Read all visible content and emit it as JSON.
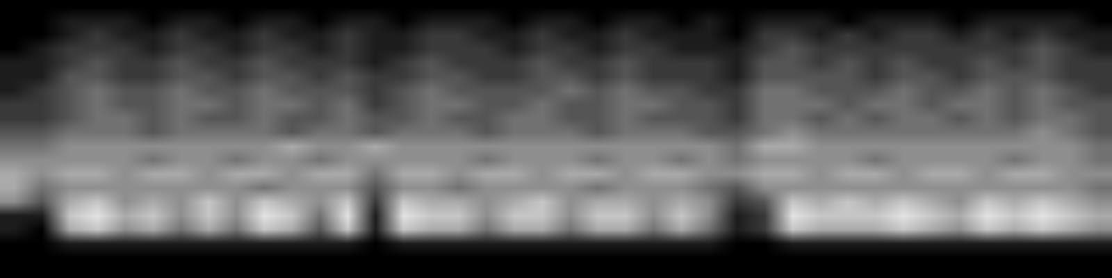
{
  "chart_data": {
    "type": "heatmap",
    "tick_labels": false,
    "grid": false,
    "zlim": [
      0,
      9
    ],
    "cells": [
      [
        0,
        0,
        0,
        0,
        0,
        0,
        0,
        0,
        0,
        0,
        0,
        0,
        0,
        0,
        0,
        0,
        0,
        0,
        0,
        0,
        0,
        0,
        0,
        0,
        0,
        0,
        0,
        0,
        0,
        0,
        0,
        0,
        0,
        0,
        0,
        0,
        0,
        0,
        0,
        0
      ],
      [
        0,
        0,
        1,
        1,
        1,
        0,
        1,
        1,
        0,
        1,
        1,
        0,
        1,
        1,
        0,
        1,
        1,
        1,
        0,
        1,
        1,
        0,
        1,
        1,
        0,
        1,
        0,
        1,
        1,
        1,
        0,
        1,
        1,
        1,
        0,
        1,
        1,
        1,
        1,
        0
      ],
      [
        0,
        0,
        1,
        2,
        1,
        1,
        2,
        1,
        1,
        2,
        1,
        1,
        2,
        1,
        1,
        2,
        2,
        1,
        1,
        2,
        1,
        1,
        2,
        1,
        1,
        1,
        0,
        2,
        2,
        1,
        2,
        1,
        2,
        2,
        1,
        2,
        1,
        2,
        1,
        1
      ],
      [
        0,
        1,
        2,
        2,
        2,
        1,
        2,
        2,
        1,
        2,
        2,
        1,
        2,
        1,
        1,
        2,
        2,
        2,
        1,
        2,
        2,
        1,
        2,
        2,
        1,
        1,
        1,
        2,
        3,
        2,
        2,
        2,
        2,
        2,
        2,
        2,
        2,
        3,
        2,
        1
      ],
      [
        1,
        1,
        2,
        3,
        2,
        2,
        3,
        2,
        2,
        3,
        2,
        2,
        2,
        1,
        2,
        3,
        2,
        2,
        2,
        3,
        2,
        2,
        3,
        2,
        2,
        2,
        1,
        3,
        3,
        2,
        3,
        2,
        3,
        2,
        2,
        3,
        2,
        3,
        2,
        2
      ],
      [
        1,
        1,
        3,
        3,
        2,
        2,
        3,
        3,
        2,
        3,
        3,
        2,
        3,
        2,
        2,
        3,
        3,
        2,
        2,
        3,
        3,
        2,
        3,
        2,
        2,
        2,
        1,
        3,
        3,
        3,
        3,
        2,
        3,
        3,
        2,
        3,
        3,
        3,
        2,
        2
      ],
      [
        1,
        2,
        3,
        4,
        3,
        3,
        4,
        3,
        3,
        4,
        3,
        3,
        3,
        2,
        3,
        4,
        3,
        3,
        3,
        3,
        4,
        3,
        4,
        3,
        3,
        2,
        2,
        4,
        4,
        3,
        3,
        3,
        4,
        3,
        3,
        4,
        3,
        4,
        3,
        2
      ],
      [
        2,
        2,
        3,
        4,
        3,
        3,
        4,
        4,
        3,
        4,
        4,
        3,
        4,
        2,
        3,
        4,
        4,
        3,
        3,
        4,
        3,
        3,
        4,
        4,
        3,
        3,
        2,
        4,
        4,
        4,
        3,
        4,
        4,
        3,
        4,
        4,
        3,
        4,
        3,
        3
      ],
      [
        2,
        2,
        3,
        4,
        4,
        3,
        4,
        3,
        3,
        4,
        3,
        3,
        4,
        3,
        3,
        4,
        3,
        3,
        4,
        4,
        3,
        3,
        4,
        3,
        3,
        3,
        2,
        4,
        4,
        3,
        4,
        3,
        4,
        4,
        3,
        4,
        3,
        4,
        4,
        3
      ],
      [
        3,
        3,
        4,
        4,
        4,
        3,
        4,
        4,
        4,
        4,
        3,
        4,
        4,
        3,
        4,
        4,
        4,
        3,
        4,
        4,
        4,
        3,
        4,
        4,
        4,
        3,
        3,
        4,
        5,
        4,
        4,
        4,
        4,
        4,
        4,
        4,
        4,
        5,
        4,
        3
      ],
      [
        4,
        4,
        5,
        5,
        5,
        5,
        5,
        5,
        5,
        5,
        6,
        5,
        5,
        6,
        5,
        5,
        5,
        5,
        5,
        5,
        5,
        5,
        5,
        5,
        5,
        5,
        4,
        6,
        6,
        5,
        5,
        5,
        5,
        5,
        5,
        5,
        5,
        5,
        5,
        4
      ],
      [
        5,
        5,
        5,
        5,
        5,
        4,
        5,
        5,
        4,
        5,
        5,
        4,
        5,
        5,
        5,
        5,
        5,
        4,
        5,
        5,
        5,
        4,
        5,
        5,
        4,
        5,
        4,
        5,
        5,
        5,
        5,
        4,
        5,
        5,
        5,
        5,
        4,
        5,
        5,
        4
      ],
      [
        6,
        5,
        6,
        6,
        5,
        6,
        6,
        5,
        6,
        6,
        5,
        6,
        6,
        4,
        6,
        6,
        5,
        6,
        6,
        5,
        6,
        6,
        5,
        6,
        6,
        5,
        5,
        6,
        6,
        5,
        6,
        6,
        5,
        6,
        6,
        5,
        6,
        6,
        5,
        5
      ],
      [
        6,
        4,
        5,
        5,
        5,
        5,
        5,
        5,
        5,
        4,
        5,
        5,
        5,
        3,
        5,
        5,
        4,
        5,
        5,
        5,
        5,
        4,
        5,
        5,
        5,
        4,
        3,
        5,
        5,
        5,
        5,
        5,
        5,
        5,
        5,
        5,
        5,
        5,
        5,
        4
      ],
      [
        5,
        3,
        6,
        7,
        5,
        6,
        5,
        7,
        5,
        7,
        6,
        5,
        7,
        2,
        7,
        6,
        6,
        5,
        6,
        7,
        5,
        6,
        6,
        5,
        6,
        5,
        2,
        3,
        7,
        6,
        7,
        6,
        7,
        6,
        5,
        7,
        6,
        7,
        6,
        5
      ],
      [
        1,
        1,
        7,
        8,
        6,
        7,
        5,
        7,
        5,
        8,
        7,
        4,
        8,
        1,
        8,
        7,
        7,
        5,
        7,
        7,
        5,
        7,
        7,
        5,
        7,
        5,
        1,
        2,
        8,
        7,
        7,
        7,
        8,
        7,
        6,
        8,
        7,
        8,
        7,
        6
      ],
      [
        1,
        0,
        6,
        7,
        5,
        6,
        4,
        6,
        4,
        7,
        6,
        3,
        7,
        1,
        7,
        6,
        6,
        4,
        6,
        6,
        4,
        6,
        6,
        4,
        6,
        4,
        1,
        2,
        7,
        6,
        6,
        6,
        7,
        6,
        5,
        7,
        6,
        7,
        6,
        5
      ],
      [
        0,
        0,
        1,
        1,
        1,
        1,
        1,
        1,
        1,
        1,
        1,
        1,
        1,
        0,
        1,
        1,
        1,
        1,
        1,
        1,
        1,
        1,
        1,
        1,
        1,
        1,
        0,
        0,
        1,
        1,
        1,
        1,
        1,
        1,
        1,
        1,
        1,
        1,
        1,
        1
      ],
      [
        0,
        0,
        0,
        0,
        0,
        0,
        0,
        0,
        0,
        0,
        0,
        0,
        0,
        0,
        0,
        0,
        0,
        0,
        0,
        0,
        0,
        0,
        0,
        0,
        0,
        0,
        0,
        0,
        0,
        0,
        0,
        0,
        0,
        0,
        0,
        0,
        0,
        0,
        0,
        0
      ],
      [
        0,
        0,
        0,
        0,
        0,
        0,
        0,
        0,
        0,
        0,
        0,
        0,
        0,
        0,
        0,
        0,
        0,
        0,
        0,
        0,
        0,
        0,
        0,
        0,
        0,
        0,
        0,
        0,
        0,
        0,
        0,
        0,
        0,
        0,
        0,
        0,
        0,
        0,
        0,
        0
      ]
    ]
  }
}
